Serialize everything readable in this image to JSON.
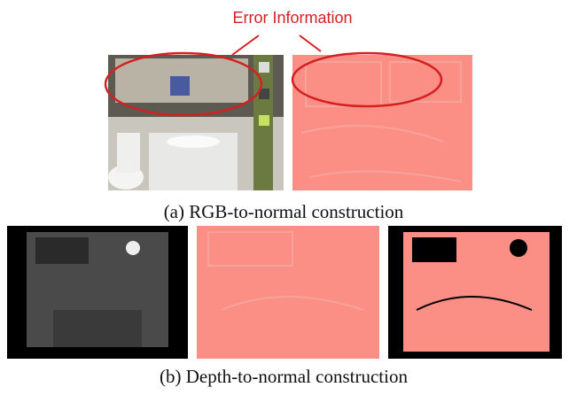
{
  "annotation": "Error Information",
  "captions": [
    "(a) RGB-to-normal construction",
    "(b) Depth-to-normal construction"
  ]
}
